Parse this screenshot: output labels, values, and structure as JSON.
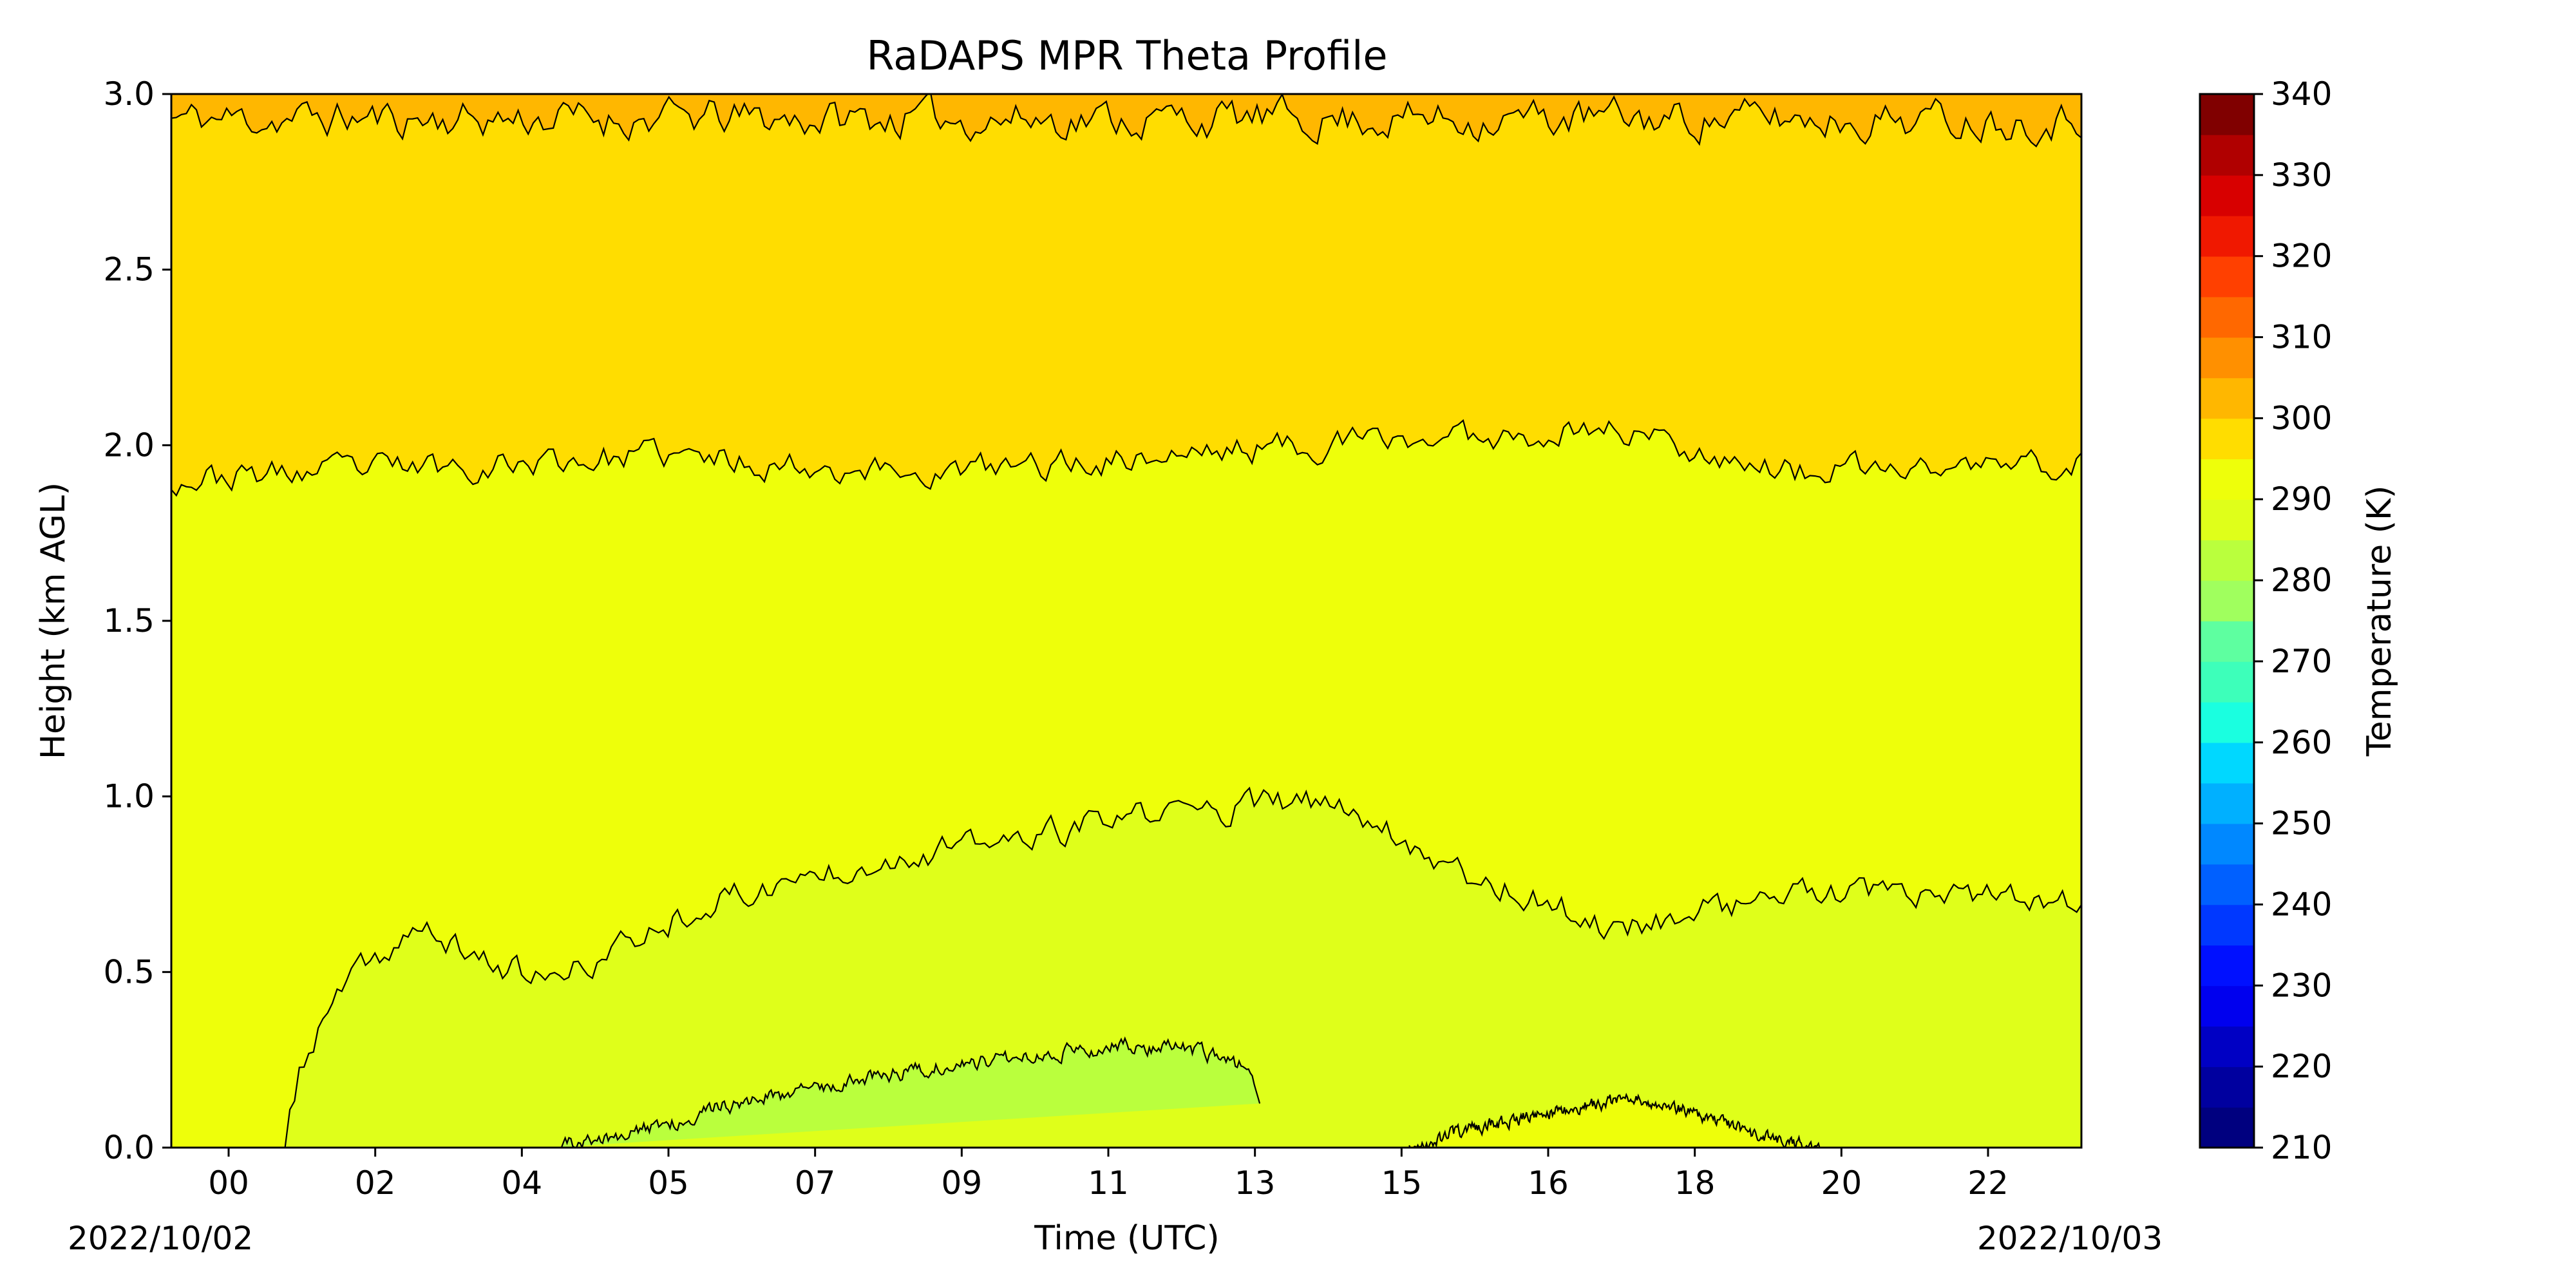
{
  "chart_data": {
    "type": "contourf",
    "title": "RaDAPS MPR Theta Profile",
    "xlabel": "Time (UTC)",
    "ylabel": "Height (km AGL)",
    "date_labels": [
      "2022/10/02",
      "2022/10/03"
    ],
    "x_ticks": [
      "00",
      "02",
      "04",
      "05",
      "07",
      "09",
      "11",
      "13",
      "15",
      "16",
      "18",
      "20",
      "22"
    ],
    "y_ticks": [
      "0.0",
      "0.5",
      "1.0",
      "1.5",
      "2.0",
      "2.5",
      "3.0"
    ],
    "ylim": [
      0,
      3.0
    ],
    "colorbar": {
      "label": "Temperature (K)",
      "min": 210,
      "max": 340,
      "step": 5,
      "tick_labels": [
        "210",
        "220",
        "230",
        "240",
        "250",
        "260",
        "270",
        "280",
        "290",
        "300",
        "310",
        "320",
        "330",
        "340"
      ],
      "colors": [
        "#00007f",
        "#00009f",
        "#0000c4",
        "#0000ee",
        "#0010ff",
        "#0038ff",
        "#0060ff",
        "#0088ff",
        "#00b0ff",
        "#00d8ff",
        "#1affe0",
        "#3dffba",
        "#5effa0",
        "#80ff80",
        "#a0ff5e",
        "#baff3d",
        "#dfff1a",
        "#eeff0a",
        "#ffdd00",
        "#ffb700",
        "#ff9000",
        "#ff6800",
        "#ff4000",
        "#f01800",
        "#d80000",
        "#b00000",
        "#800000"
      ]
    },
    "contour_levels_K": [
      285,
      290,
      295,
      300,
      305
    ],
    "regions": [
      {
        "theta_range": "285-290",
        "approx_top_km": 0.3,
        "time_span_hours": [
          4.5,
          14.5
        ]
      },
      {
        "theta_range": "290-295",
        "approx_top_km": 0.9,
        "time_span_hours": [
          0.8,
          24
        ]
      },
      {
        "theta_range": "295-300",
        "approx_top_km": 1.95,
        "time_span_hours": [
          0,
          24
        ]
      },
      {
        "theta_range": "300-305",
        "approx_top_km": 2.95,
        "time_span_hours": [
          0,
          24
        ]
      },
      {
        "theta_range": "305-310",
        "approx_top_km": 3.0,
        "time_span_hours": [
          0,
          24
        ]
      }
    ]
  }
}
